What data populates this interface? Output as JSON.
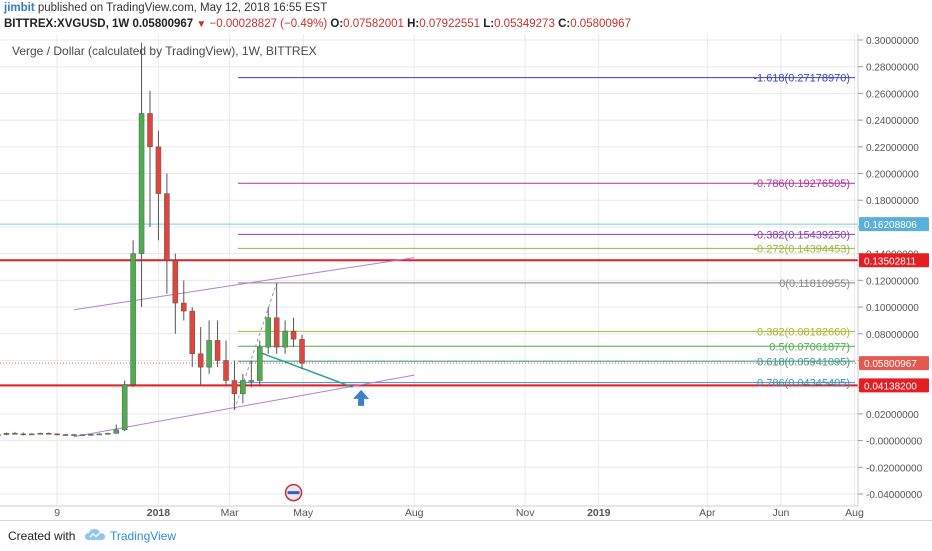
{
  "header": {
    "author": "jimbit",
    "published_text": " published on TradingView.com, May 12, 2018 16:55 EST",
    "symbol": "BITTREX:XVGUSD, 1W",
    "last": "0.05800967",
    "change_arrow": "▼",
    "change": "−0.00028827 (−0.49%)",
    "o_label": "O:",
    "o_value": "0.07582001",
    "h_label": "H:",
    "h_value": "0.07922551",
    "l_label": "L:",
    "l_value": "0.05349273",
    "c_label": "C:",
    "c_value": "0.05800967"
  },
  "chart_data": {
    "type": "candlestick",
    "title": "Verge / Dollar (calculated by TradingView), 1W, BITTREX",
    "ylim": [
      -0.05,
      0.305
    ],
    "y_ticks": [
      "0.30000000",
      "0.28000000",
      "0.26000000",
      "0.24000000",
      "0.22000000",
      "0.20000000",
      "0.18000000",
      "0.16000000",
      "0.14000000",
      "0.12000000",
      "0.10000000",
      "0.08000000",
      "0.06000000",
      "0.04000000",
      "0.02000000",
      "-0.00000000",
      "-0.02000000",
      "-0.04000000"
    ],
    "y_tick_values": [
      0.3,
      0.28,
      0.26,
      0.24,
      0.22,
      0.2,
      0.18,
      0.16,
      0.14,
      0.12,
      0.1,
      0.08,
      0.06,
      0.04,
      0.02,
      0.0,
      -0.02,
      -0.04
    ],
    "x_ticks": [
      {
        "label": "9",
        "date": "2017-10-09"
      },
      {
        "label": "2018",
        "date": "2018-01-01"
      },
      {
        "label": "Mar",
        "date": "2018-03-01"
      },
      {
        "label": "May",
        "date": "2018-05-01"
      },
      {
        "label": "Aug",
        "date": "2018-08-01"
      },
      {
        "label": "Nov",
        "date": "2018-11-01"
      },
      {
        "label": "2019",
        "date": "2019-01-01"
      },
      {
        "label": "Apr",
        "date": "2019-04-01"
      },
      {
        "label": "Jun",
        "date": "2019-06-01"
      },
      {
        "label": "Aug",
        "date": "2019-08-01"
      }
    ],
    "candles": [
      {
        "date": "2017-08-21",
        "o": 0.004,
        "h": 0.005,
        "l": 0.003,
        "c": 0.0045
      },
      {
        "date": "2017-08-28",
        "o": 0.0045,
        "h": 0.006,
        "l": 0.004,
        "c": 0.0055
      },
      {
        "date": "2017-09-04",
        "o": 0.0055,
        "h": 0.0065,
        "l": 0.0045,
        "c": 0.005
      },
      {
        "date": "2017-09-11",
        "o": 0.005,
        "h": 0.006,
        "l": 0.004,
        "c": 0.0045
      },
      {
        "date": "2017-09-18",
        "o": 0.0045,
        "h": 0.0055,
        "l": 0.004,
        "c": 0.005
      },
      {
        "date": "2017-09-25",
        "o": 0.005,
        "h": 0.006,
        "l": 0.0045,
        "c": 0.0055
      },
      {
        "date": "2017-10-02",
        "o": 0.0055,
        "h": 0.006,
        "l": 0.0045,
        "c": 0.005
      },
      {
        "date": "2017-10-09",
        "o": 0.005,
        "h": 0.0055,
        "l": 0.004,
        "c": 0.0045
      },
      {
        "date": "2017-10-16",
        "o": 0.0045,
        "h": 0.005,
        "l": 0.004,
        "c": 0.0045
      },
      {
        "date": "2017-10-23",
        "o": 0.0045,
        "h": 0.005,
        "l": 0.004,
        "c": 0.0042
      },
      {
        "date": "2017-10-30",
        "o": 0.0042,
        "h": 0.0048,
        "l": 0.0038,
        "c": 0.0044
      },
      {
        "date": "2017-11-06",
        "o": 0.0044,
        "h": 0.005,
        "l": 0.004,
        "c": 0.0046
      },
      {
        "date": "2017-11-13",
        "o": 0.0046,
        "h": 0.0055,
        "l": 0.0042,
        "c": 0.005
      },
      {
        "date": "2017-11-20",
        "o": 0.005,
        "h": 0.006,
        "l": 0.0045,
        "c": 0.0055
      },
      {
        "date": "2017-11-27",
        "o": 0.0055,
        "h": 0.012,
        "l": 0.005,
        "c": 0.008
      },
      {
        "date": "2017-12-04",
        "o": 0.008,
        "h": 0.045,
        "l": 0.007,
        "c": 0.042
      },
      {
        "date": "2017-12-11",
        "o": 0.042,
        "h": 0.15,
        "l": 0.04,
        "c": 0.14
      },
      {
        "date": "2017-12-18",
        "o": 0.14,
        "h": 0.298,
        "l": 0.1,
        "c": 0.245
      },
      {
        "date": "2017-12-25",
        "o": 0.245,
        "h": 0.262,
        "l": 0.16,
        "c": 0.22
      },
      {
        "date": "2018-01-01",
        "o": 0.22,
        "h": 0.232,
        "l": 0.15,
        "c": 0.185
      },
      {
        "date": "2018-01-08",
        "o": 0.185,
        "h": 0.2,
        "l": 0.11,
        "c": 0.135
      },
      {
        "date": "2018-01-15",
        "o": 0.135,
        "h": 0.14,
        "l": 0.08,
        "c": 0.103
      },
      {
        "date": "2018-01-22",
        "o": 0.103,
        "h": 0.12,
        "l": 0.09,
        "c": 0.097
      },
      {
        "date": "2018-01-29",
        "o": 0.097,
        "h": 0.1,
        "l": 0.055,
        "c": 0.065
      },
      {
        "date": "2018-02-05",
        "o": 0.065,
        "h": 0.085,
        "l": 0.042,
        "c": 0.055
      },
      {
        "date": "2018-02-12",
        "o": 0.055,
        "h": 0.09,
        "l": 0.05,
        "c": 0.075
      },
      {
        "date": "2018-02-19",
        "o": 0.075,
        "h": 0.09,
        "l": 0.055,
        "c": 0.06
      },
      {
        "date": "2018-02-26",
        "o": 0.06,
        "h": 0.075,
        "l": 0.042,
        "c": 0.045
      },
      {
        "date": "2018-03-05",
        "o": 0.045,
        "h": 0.06,
        "l": 0.023,
        "c": 0.035
      },
      {
        "date": "2018-03-12",
        "o": 0.035,
        "h": 0.05,
        "l": 0.028,
        "c": 0.045
      },
      {
        "date": "2018-03-19",
        "o": 0.045,
        "h": 0.06,
        "l": 0.04,
        "c": 0.045
      },
      {
        "date": "2018-03-26",
        "o": 0.045,
        "h": 0.075,
        "l": 0.042,
        "c": 0.07
      },
      {
        "date": "2018-04-02",
        "o": 0.07,
        "h": 0.1,
        "l": 0.065,
        "c": 0.092
      },
      {
        "date": "2018-04-09",
        "o": 0.092,
        "h": 0.118,
        "l": 0.065,
        "c": 0.07
      },
      {
        "date": "2018-04-16",
        "o": 0.07,
        "h": 0.09,
        "l": 0.065,
        "c": 0.082
      },
      {
        "date": "2018-04-23",
        "o": 0.082,
        "h": 0.092,
        "l": 0.07,
        "c": 0.076
      },
      {
        "date": "2018-04-30",
        "o": 0.0758,
        "h": 0.0792,
        "l": 0.0535,
        "c": 0.058
      }
    ],
    "horizontal_levels": [
      {
        "value": 0.16208806,
        "color": "#7ec8e3",
        "price_label": "0.16208806",
        "label_bg": "#5ab0d8"
      },
      {
        "value": 0.13502811,
        "color": "#e31e24",
        "price_label": "0.13502811",
        "label_bg": "#e31e24"
      },
      {
        "value": 0.041382,
        "color": "#e31e24",
        "price_label": "0.04138200",
        "label_bg": "#e31e24"
      },
      {
        "value": 0.05800967,
        "color": "#e06060",
        "price_label": "0.05800967",
        "label_bg": "#e35a50",
        "dotted": true
      }
    ],
    "fib_levels": [
      {
        "text": "-1.618(0.27178970)",
        "value": 0.2717897,
        "color": "#3e3ebd"
      },
      {
        "text": "-0.786(0.19276505)",
        "value": 0.19276505,
        "color": "#b0349c"
      },
      {
        "text": "-0.382(0.15439250)",
        "value": 0.1543925,
        "color": "#8a3fb5"
      },
      {
        "text": "-0.272(0.14394453)",
        "value": 0.14394453,
        "color": "#98b840"
      },
      {
        "text": "0(0.11810955)",
        "value": 0.11810955,
        "color": "#888888"
      },
      {
        "text": "0.382(0.08182660)",
        "value": 0.0818266,
        "color": "#aab830"
      },
      {
        "text": "0.5(0.07061877)",
        "value": 0.07061877,
        "color": "#4cae4c"
      },
      {
        "text": "0.618(0.05941095)",
        "value": 0.05941095,
        "color": "#3a9e8a"
      },
      {
        "text": "0.786(0.04345405)",
        "value": 0.04345405,
        "color": "#3a8ec0"
      }
    ],
    "colors": {
      "up": "#4cae4c",
      "down": "#e0463c",
      "channel": "#b080d0",
      "trend": "#2aa198",
      "arrow": "#3a82c8",
      "grid": "#eaeaea"
    }
  },
  "footer": {
    "created_with": "Created with",
    "brand": "TradingView"
  }
}
